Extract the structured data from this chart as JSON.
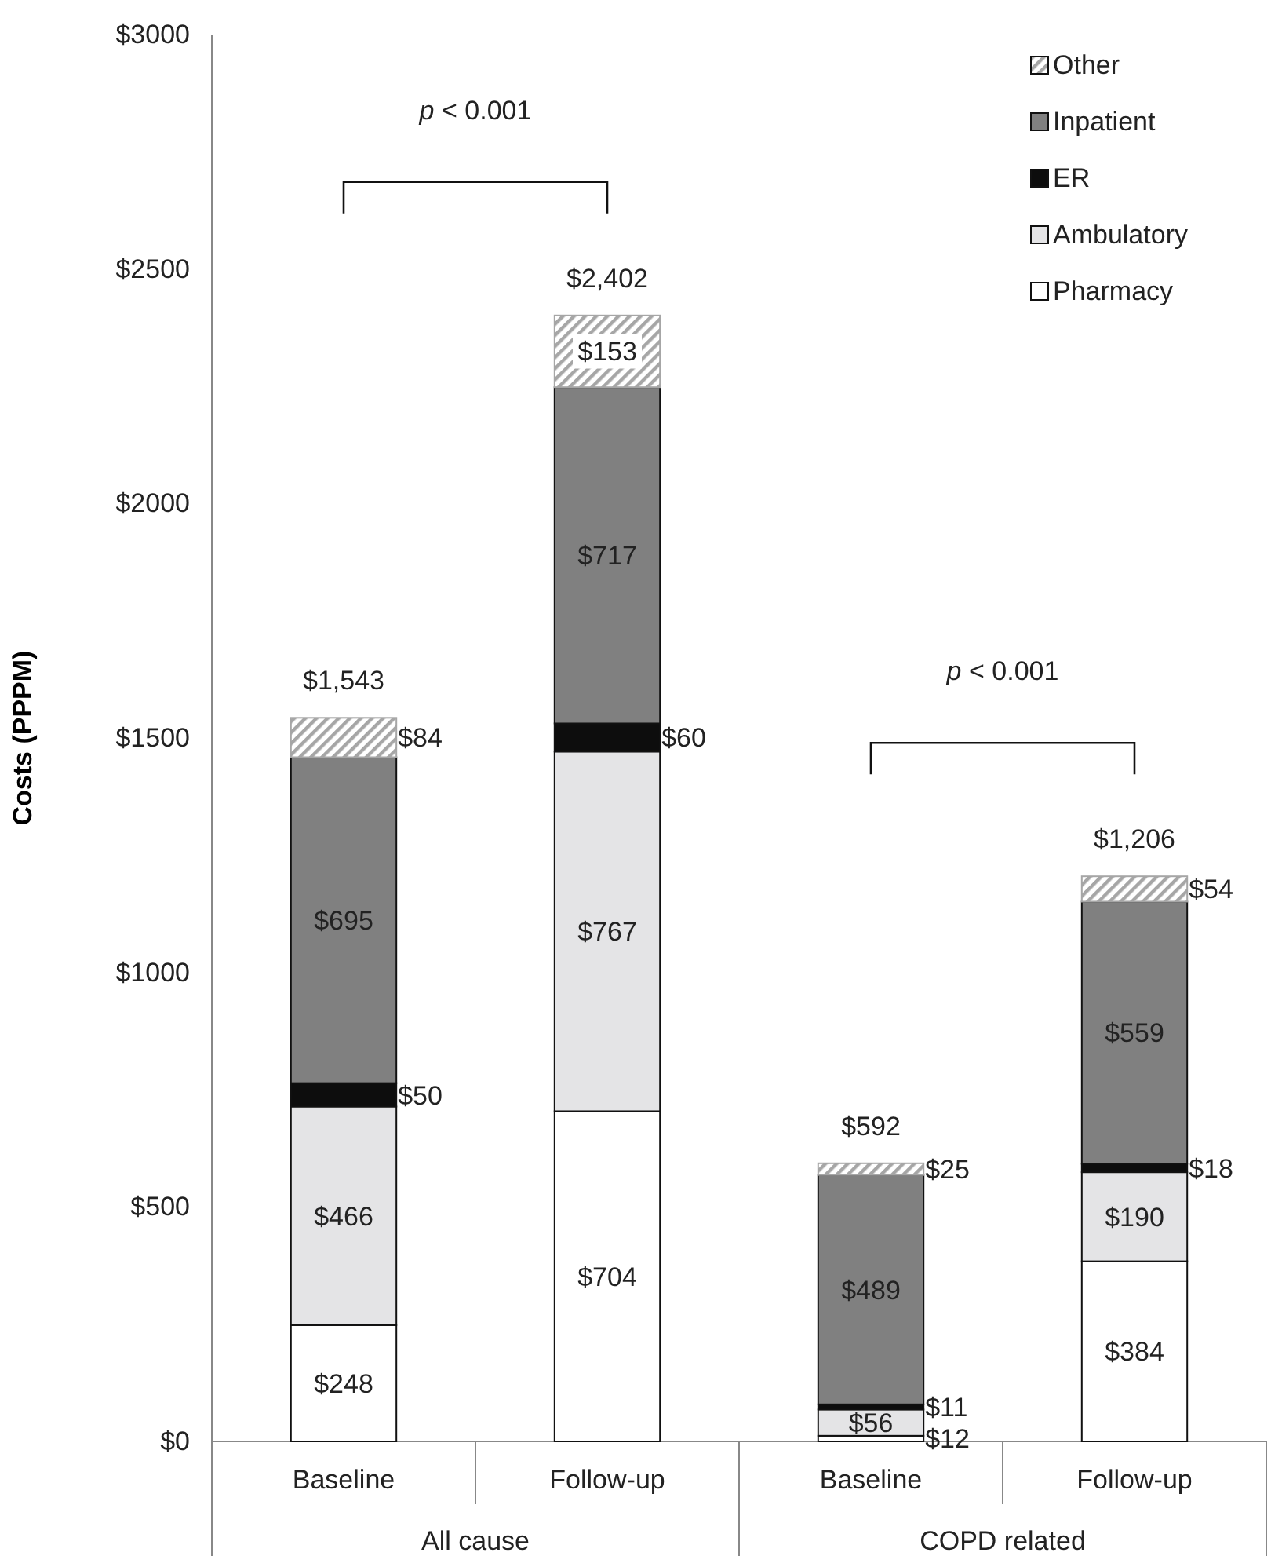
{
  "chart_data": {
    "type": "bar",
    "stacked": true,
    "ylabel": "Costs (PPPM)",
    "categories": [
      "Baseline",
      "Follow-up",
      "Baseline",
      "Follow-up"
    ],
    "ylim": [
      0,
      3000
    ],
    "yticks": [
      {
        "value": 0,
        "label": "$0"
      },
      {
        "value": 500,
        "label": "$500"
      },
      {
        "value": 1000,
        "label": "$1000"
      },
      {
        "value": 1500,
        "label": "$1500"
      },
      {
        "value": 2000,
        "label": "$2000"
      },
      {
        "value": 2500,
        "label": "$2500"
      },
      {
        "value": 3000,
        "label": "$3000"
      }
    ],
    "series": [
      {
        "name": "Pharmacy",
        "color": "#ffffff",
        "values": [
          248,
          704,
          12,
          384
        ],
        "value_labels": [
          "$248",
          "$704",
          "$12",
          "$384"
        ]
      },
      {
        "name": "Ambulatory",
        "color": "#e4e4e6",
        "values": [
          466,
          767,
          56,
          190
        ],
        "value_labels": [
          "$466",
          "$767",
          "$56",
          "$190"
        ]
      },
      {
        "name": "ER",
        "color": "#0d0d0d",
        "values": [
          50,
          60,
          11,
          18
        ],
        "value_labels": [
          "$50",
          "$60",
          "$11",
          "$18"
        ]
      },
      {
        "name": "Inpatient",
        "color": "#808080",
        "values": [
          695,
          717,
          489,
          559
        ],
        "value_labels": [
          "$695",
          "$717",
          "$489",
          "$559"
        ]
      },
      {
        "name": "Other",
        "color": "#a6a6a6",
        "values": [
          84,
          153,
          25,
          54
        ],
        "value_labels": [
          "$84",
          "$153",
          "$25",
          "$54"
        ]
      }
    ],
    "totals": [
      "$1,543",
      "$2,402",
      "$592",
      "$1,206"
    ],
    "annotations": [
      "p < 0.001",
      "p < 0.001",
      "All cause",
      "COPD related"
    ],
    "legend": "top right",
    "grid": false
  }
}
